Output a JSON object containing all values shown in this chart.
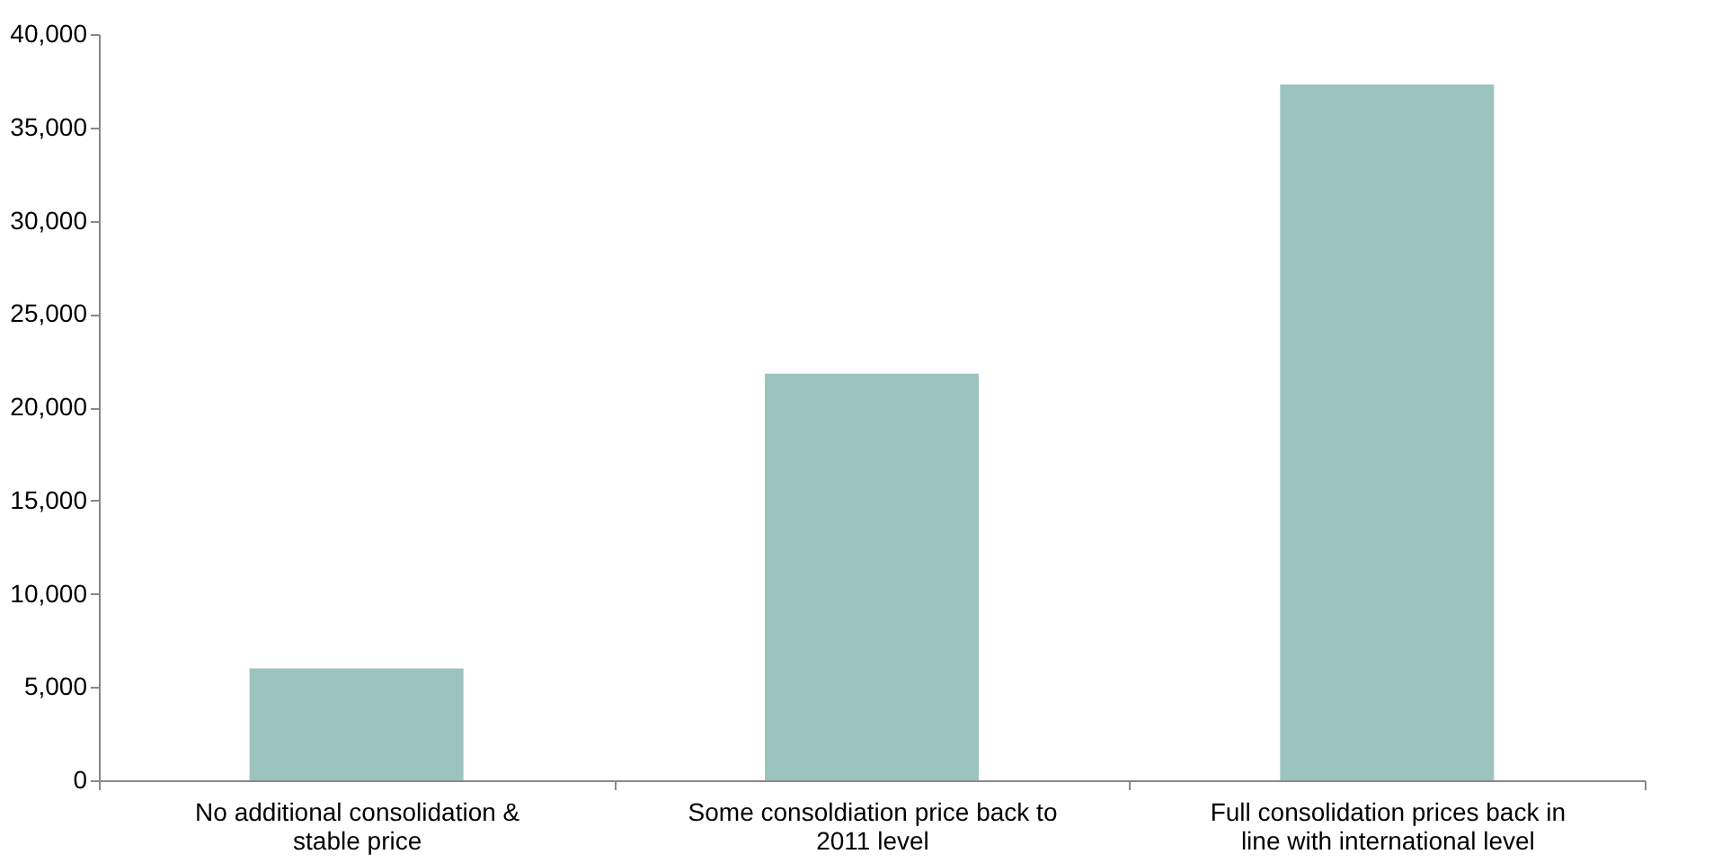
{
  "chart_data": {
    "type": "bar",
    "categories": [
      "No additional consolidation & stable price",
      "Some consoldiation price back to 2011 level",
      "Full consolidation prices back in line with international level"
    ],
    "values": [
      6000,
      21800,
      37300
    ],
    "color": "#9bc4bf",
    "ylim": [
      0,
      40000
    ],
    "yticks": [
      0,
      {
        "value": 5000,
        "label": "5,000"
      },
      {
        "value": 10000,
        "label": "10,000"
      },
      {
        "value": 15000,
        "label": "15,000"
      },
      {
        "value": 20000,
        "label": "20,000"
      },
      {
        "value": 25000,
        "label": "25,000"
      },
      {
        "value": 30000,
        "label": "30,000"
      },
      {
        "value": 35000,
        "label": "35,000"
      },
      {
        "value": 40000,
        "label": "40,000"
      }
    ],
    "grid": false
  }
}
